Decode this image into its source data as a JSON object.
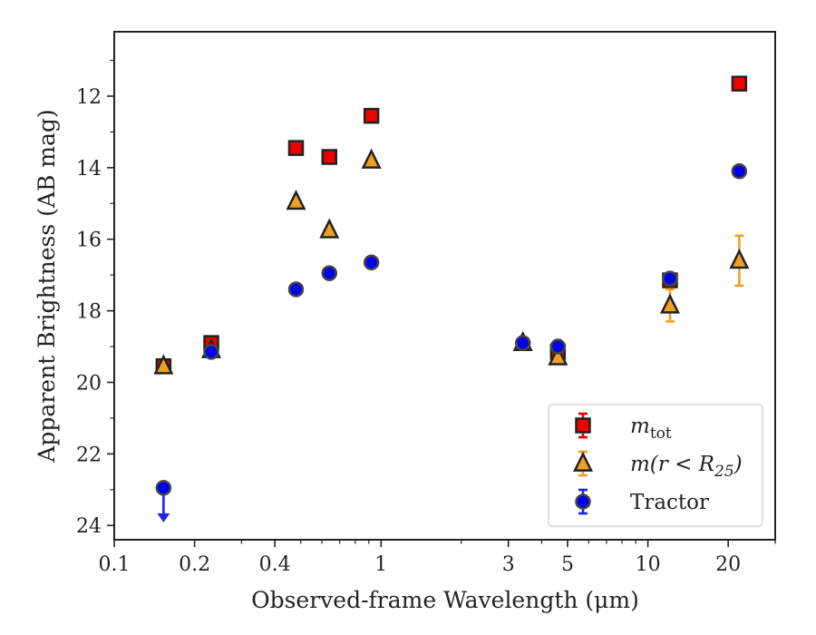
{
  "chart_data": {
    "type": "scatter",
    "xlabel": "Observed-frame Wavelength (μm)",
    "ylabel": "Apparent Brightness (AB mag)",
    "x_scale": "log",
    "xlim": [
      0.1,
      30
    ],
    "ylim": [
      24.4,
      10.2
    ],
    "y_inverted": true,
    "x_ticks": [
      {
        "value": 0.1,
        "label": "0.1"
      },
      {
        "value": 0.2,
        "label": "0.2"
      },
      {
        "value": 0.4,
        "label": "0.4"
      },
      {
        "value": 1,
        "label": "1"
      },
      {
        "value": 3,
        "label": "3"
      },
      {
        "value": 5,
        "label": "5"
      },
      {
        "value": 10,
        "label": "10"
      },
      {
        "value": 20,
        "label": "20"
      }
    ],
    "y_ticks": [
      {
        "value": 12,
        "label": "12"
      },
      {
        "value": 14,
        "label": "14"
      },
      {
        "value": 16,
        "label": "16"
      },
      {
        "value": 18,
        "label": "18"
      },
      {
        "value": 20,
        "label": "20"
      },
      {
        "value": 22,
        "label": "22"
      },
      {
        "value": 24,
        "label": "24"
      }
    ],
    "legend_position": "bottom-right",
    "series": [
      {
        "name": "m_tot",
        "legend_main": "m",
        "legend_sub": "tot",
        "marker": "square",
        "fill": "#ee0000",
        "edge": "#222222",
        "err_color": "#dd0000",
        "points": [
          {
            "x": 0.153,
            "y": 19.55
          },
          {
            "x": 0.231,
            "y": 18.9
          },
          {
            "x": 0.48,
            "y": 13.45
          },
          {
            "x": 0.64,
            "y": 13.7
          },
          {
            "x": 0.92,
            "y": 12.55
          },
          {
            "x": 4.6,
            "y": 19.15
          },
          {
            "x": 12.1,
            "y": 17.15
          },
          {
            "x": 22.0,
            "y": 11.65
          }
        ]
      },
      {
        "name": "m(r < R25)",
        "legend_main": "m(r < R",
        "legend_sub": "25",
        "legend_tail": ")",
        "marker": "triangle",
        "fill": "#f0a020",
        "edge": "#222222",
        "err_color": "#f0a020",
        "points": [
          {
            "x": 0.153,
            "y": 19.55
          },
          {
            "x": 0.231,
            "y": 19.1
          },
          {
            "x": 0.48,
            "y": 14.95
          },
          {
            "x": 0.64,
            "y": 15.75
          },
          {
            "x": 0.92,
            "y": 13.8
          },
          {
            "x": 3.4,
            "y": 18.9
          },
          {
            "x": 4.6,
            "y": 19.3
          },
          {
            "x": 12.1,
            "y": 17.85,
            "err": 0.45
          },
          {
            "x": 22.0,
            "y": 16.6,
            "err": 0.7
          }
        ]
      },
      {
        "name": "Tractor",
        "legend_main": "Tractor",
        "marker": "circle",
        "fill": "#0000ee",
        "edge": "#444444",
        "err_color": "#2222ee",
        "points": [
          {
            "x": 0.153,
            "y": 22.95,
            "upper_limit": true
          },
          {
            "x": 0.231,
            "y": 19.15
          },
          {
            "x": 0.48,
            "y": 17.4
          },
          {
            "x": 0.64,
            "y": 16.95
          },
          {
            "x": 0.92,
            "y": 16.65
          },
          {
            "x": 3.4,
            "y": 18.9
          },
          {
            "x": 4.6,
            "y": 19.0
          },
          {
            "x": 12.1,
            "y": 17.1
          },
          {
            "x": 22.0,
            "y": 14.1
          }
        ]
      }
    ]
  }
}
